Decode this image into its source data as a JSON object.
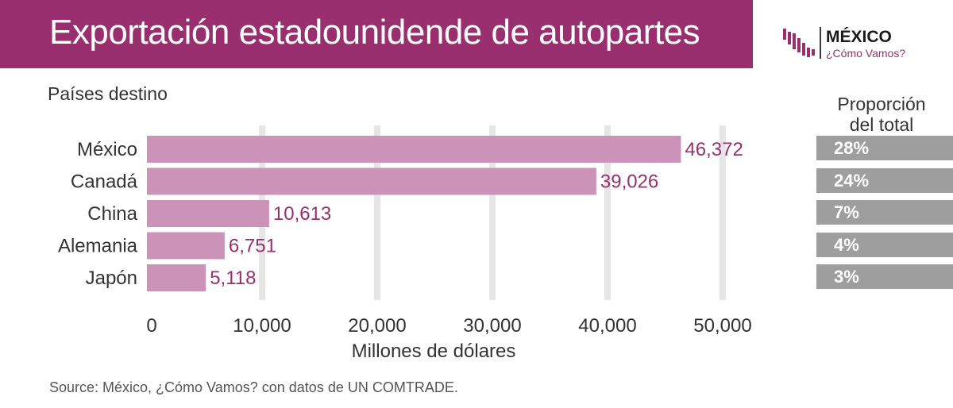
{
  "header": {
    "title": "Exportación estadounidende de autopartes",
    "banner_color": "#9a2f70"
  },
  "logo": {
    "main": "MÉXICO",
    "sub": "¿Cómo Vamos?",
    "icon": "bar-pattern-icon"
  },
  "chart_data": {
    "type": "bar",
    "orientation": "horizontal",
    "title": "Exportación estadounidende de autopartes",
    "subtitle": "Países destino",
    "categories": [
      "México",
      "Canadá",
      "China",
      "Alemania",
      "Japón"
    ],
    "values": [
      46372,
      39026,
      10613,
      6751,
      5118
    ],
    "value_labels": [
      "46,372",
      "39,026",
      "10,613",
      "6,751",
      "5,118"
    ],
    "xlabel": "Millones de dólares",
    "ylabel": "",
    "xlim": [
      0,
      50000
    ],
    "xticks": [
      0,
      10000,
      20000,
      30000,
      40000,
      50000
    ],
    "xtick_labels": [
      "0",
      "10,000",
      "20,000",
      "30,000",
      "40,000",
      "50,000"
    ],
    "grid": true,
    "bar_color": "#cc93b8",
    "value_label_color": "#9a2f70"
  },
  "proportion": {
    "header": "Proporción del total",
    "header_line1": "Proporción",
    "header_line2": "del total",
    "values": [
      "28%",
      "24%",
      "7%",
      "4%",
      "3%"
    ],
    "box_color": "#9e9e9e"
  },
  "source": "Source: México, ¿Cómo Vamos? con datos de UN COMTRADE."
}
